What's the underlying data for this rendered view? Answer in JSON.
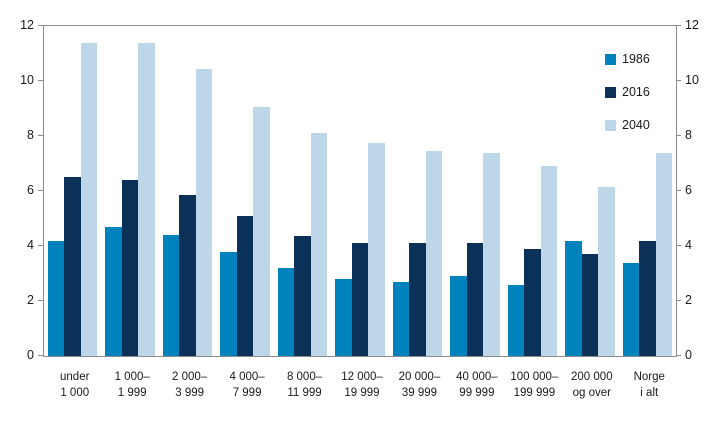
{
  "figure": {
    "background_color": "#ffffff",
    "frame_color": "#8a8a8a",
    "text_color": "#1a1a1a"
  },
  "chart_data": {
    "type": "bar",
    "title": "",
    "xlabel": "",
    "ylabel": "",
    "ylim": [
      0,
      12
    ],
    "yticks": [
      0,
      2,
      4,
      6,
      8,
      10,
      12
    ],
    "grid": false,
    "dual_y_axis": true,
    "legend_position": "top-right",
    "categories": [
      [
        "under",
        "1 000"
      ],
      [
        "1 000–",
        "1 999"
      ],
      [
        "2 000–",
        "3 999"
      ],
      [
        "4 000–",
        "7 999"
      ],
      [
        "8 000–",
        "11 999"
      ],
      [
        "12 000–",
        "19 999"
      ],
      [
        "20 000–",
        "39 999"
      ],
      [
        "40 000–",
        "99 999"
      ],
      [
        "100 000–",
        "199 999"
      ],
      [
        "200 000",
        "og over"
      ],
      [
        "Norge",
        "i alt"
      ]
    ],
    "series": [
      {
        "name": "1986",
        "color": "#0082bd",
        "values": [
          4.2,
          4.7,
          4.4,
          3.8,
          3.2,
          2.8,
          2.7,
          2.9,
          2.6,
          4.2,
          3.4
        ]
      },
      {
        "name": "2016",
        "color": "#0b3158",
        "values": [
          6.5,
          6.4,
          5.85,
          5.1,
          4.35,
          4.1,
          4.1,
          4.1,
          3.9,
          3.7,
          4.2
        ]
      },
      {
        "name": "2040",
        "color": "#bdd7e9",
        "values": [
          11.4,
          11.4,
          10.45,
          9.05,
          8.1,
          7.75,
          7.45,
          7.4,
          6.9,
          6.15,
          7.4
        ]
      }
    ]
  }
}
